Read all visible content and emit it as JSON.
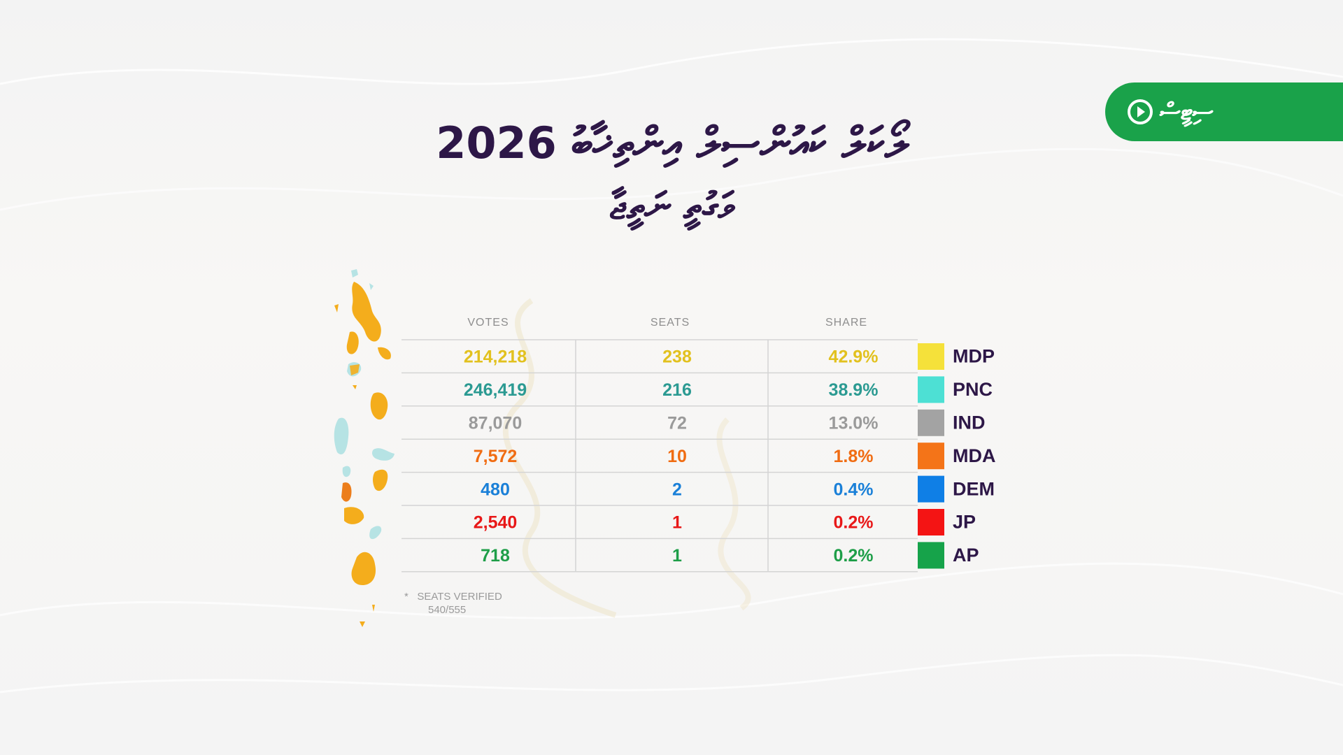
{
  "badge": {
    "label": "ސިޓީސް",
    "icon": "play-circle-icon"
  },
  "title": {
    "line1": "ލޯކަލް ކައުންސިލް އިންތިޚާބު 2026",
    "line2": "ވަގުތީ ނަތީޖާ"
  },
  "chart_data": {
    "type": "table",
    "columns": [
      "VOTES",
      "SEATS",
      "SHARE"
    ],
    "rows": [
      {
        "party": "MDP",
        "votes": "214,218",
        "seats": "238",
        "share": "42.9%",
        "color": "#f5e13a",
        "text_color": "#e2c11e"
      },
      {
        "party": "PNC",
        "votes": "246,419",
        "seats": "216",
        "share": "38.9%",
        "color": "#4de0d4",
        "text_color": "#2b9a92"
      },
      {
        "party": "IND",
        "votes": "87,070",
        "seats": "72",
        "share": "13.0%",
        "color": "#a3a3a3",
        "text_color": "#9a9a9a"
      },
      {
        "party": "MDA",
        "votes": "7,572",
        "seats": "10",
        "share": "1.8%",
        "color": "#f47418",
        "text_color": "#f06c12"
      },
      {
        "party": "DEM",
        "votes": "480",
        "seats": "2",
        "share": "0.4%",
        "color": "#0f7fe6",
        "text_color": "#1a80d8"
      },
      {
        "party": "JP",
        "votes": "2,540",
        "seats": "1",
        "share": "0.2%",
        "color": "#f41414",
        "text_color": "#e81818"
      },
      {
        "party": "AP",
        "votes": "718",
        "seats": "1",
        "share": "0.2%",
        "color": "#16a34a",
        "text_color": "#1e9e48"
      }
    ]
  },
  "footnote": {
    "label": "SEATS VERIFIED",
    "value": "540/555",
    "marker": "*"
  },
  "colors": {
    "title": "#2d1747",
    "badge": "#1aa24a",
    "map_orange": "#f4ad1c",
    "map_teal": "#b6e3e4"
  }
}
